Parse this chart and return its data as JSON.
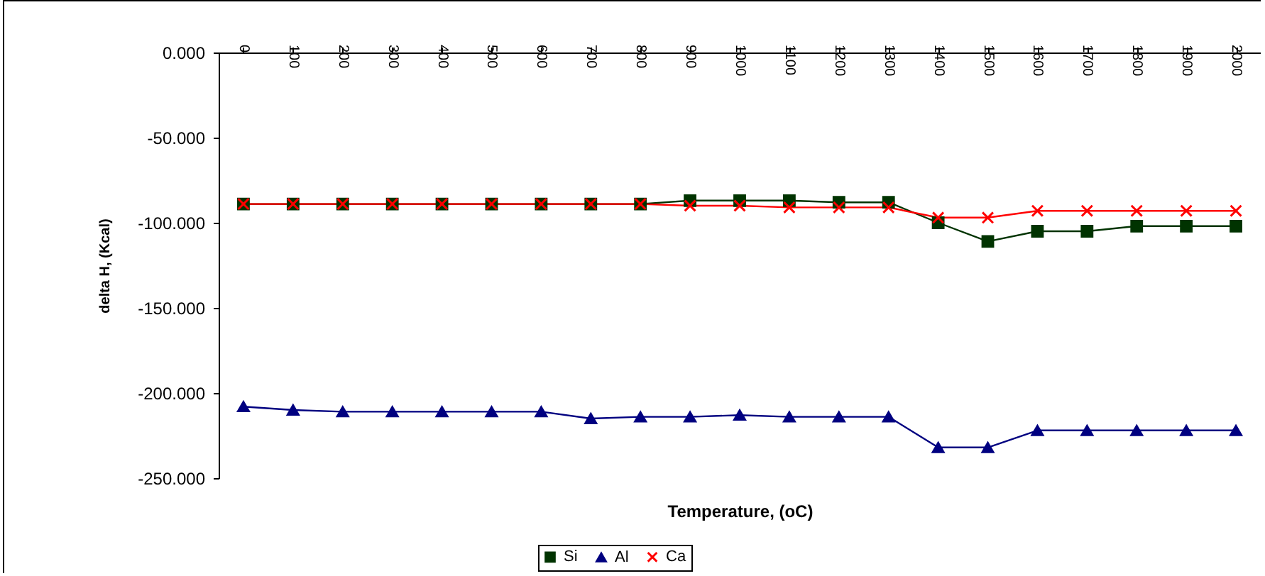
{
  "chart_data": {
    "type": "line",
    "xlabel": "Temperature, (oC)",
    "ylabel": "delta H, (Kcal)",
    "categories": [
      "0",
      "100",
      "200",
      "300",
      "400",
      "500",
      "600",
      "700",
      "800",
      "900",
      "1000",
      "1100",
      "1200",
      "1300",
      "1400",
      "1500",
      "1600",
      "1700",
      "1800",
      "1900",
      "2000"
    ],
    "series": [
      {
        "name": "Si",
        "color": "#003300",
        "marker": "square",
        "values": [
          -89,
          -89,
          -89,
          -89,
          -89,
          -89,
          -89,
          -89,
          -89,
          -87,
          -87,
          -87,
          -88,
          -88,
          -100,
          -111,
          -105,
          -105,
          -102,
          -102,
          -102
        ]
      },
      {
        "name": "Al",
        "color": "#000080",
        "marker": "triangle",
        "values": [
          -208,
          -210,
          -211,
          -211,
          -211,
          -211,
          -211,
          -215,
          -214,
          -214,
          -213,
          -214,
          -214,
          -214,
          -232,
          -232,
          -222,
          -222,
          -222,
          -222,
          -222
        ]
      },
      {
        "name": "Ca",
        "color": "#ff0000",
        "marker": "cross",
        "values": [
          -89,
          -89,
          -89,
          -89,
          -89,
          -89,
          -89,
          -89,
          -89,
          -90,
          -90,
          -91,
          -91,
          -91,
          -97,
          -97,
          -93,
          -93,
          -93,
          -93,
          -93
        ]
      }
    ],
    "ylim": [
      -250,
      0
    ],
    "yticks": [
      {
        "value": -250,
        "label": "-250.000"
      },
      {
        "value": -200,
        "label": "-200.000"
      },
      {
        "value": -150,
        "label": "-150.000"
      },
      {
        "value": -100,
        "label": "-100.000"
      },
      {
        "value": -50,
        "label": "-50.000"
      },
      {
        "value": 0,
        "label": "0.000"
      }
    ],
    "legend": "bottom",
    "grid": false
  }
}
